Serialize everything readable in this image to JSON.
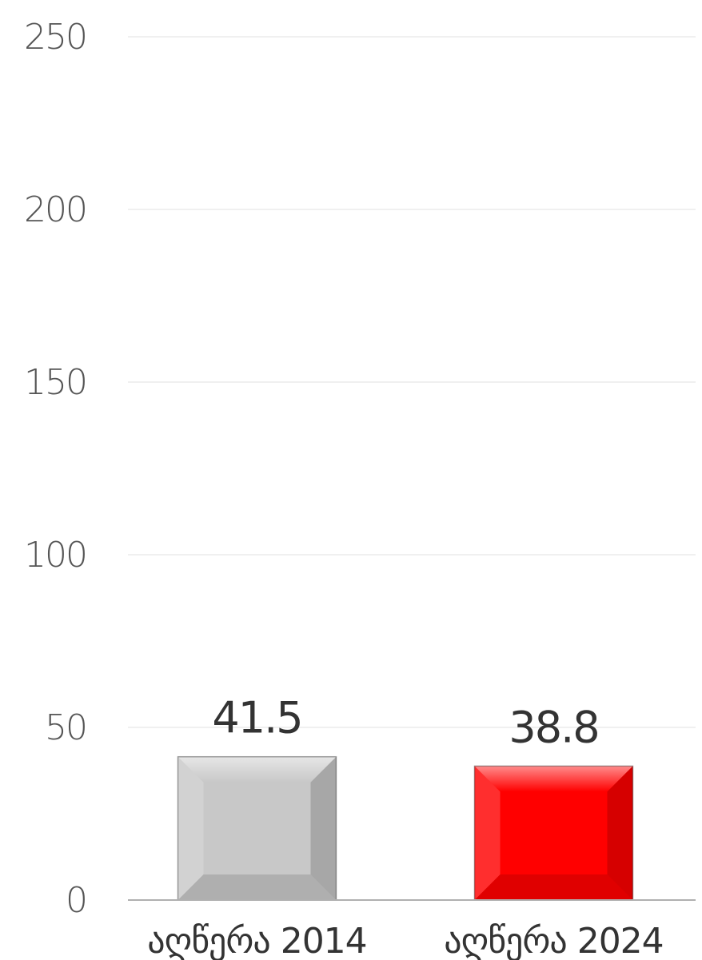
{
  "chart_data": {
    "type": "bar",
    "title": "",
    "xlabel": "",
    "ylabel": "",
    "categories": [
      "აღწერა 2014",
      "აღწერა 2024"
    ],
    "values": [
      41.5,
      38.8
    ],
    "value_labels": [
      "41.5",
      "38.8"
    ],
    "colors": [
      "#c8c8c8",
      "#ff0000"
    ],
    "ylim": [
      0,
      250
    ],
    "yticks": [
      0,
      50,
      100,
      150,
      200,
      250
    ],
    "ytick_labels": [
      "0",
      "50",
      "100",
      "150",
      "200",
      "250"
    ],
    "grid": true,
    "legend": "none"
  }
}
